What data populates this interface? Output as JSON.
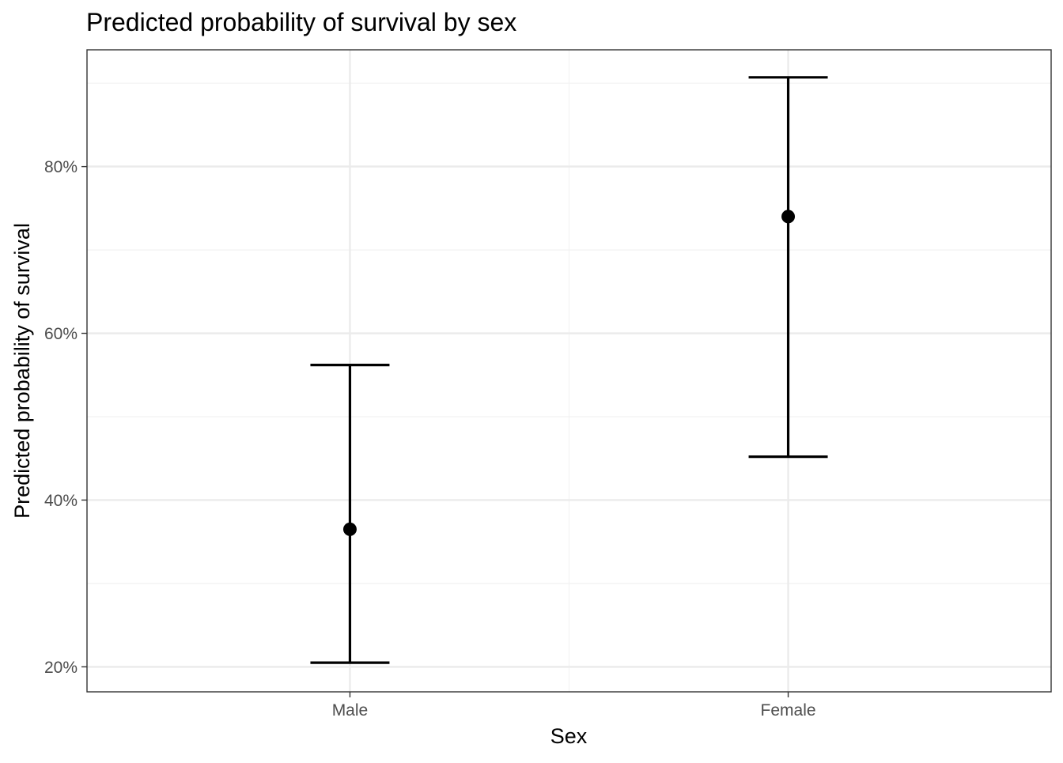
{
  "chart_data": {
    "type": "scatter",
    "subtype": "point-with-errorbars",
    "title": "Predicted probability of survival by sex",
    "xlabel": "Sex",
    "ylabel": "Predicted probability of survival",
    "categories": [
      "Male",
      "Female"
    ],
    "series": [
      {
        "values": [
          0.365,
          0.74
        ],
        "lower": [
          0.205,
          0.452
        ],
        "upper": [
          0.562,
          0.907
        ]
      }
    ],
    "ylim": [
      0.17,
      0.94
    ],
    "yticks": [
      0.2,
      0.4,
      0.6,
      0.8
    ],
    "ytick_labels": [
      "20%",
      "40%",
      "60%",
      "80%"
    ],
    "y_minor_ticks": [
      0.3,
      0.5,
      0.7,
      0.9
    ],
    "grid": true,
    "legend": "none",
    "colors": {
      "point": "#000000",
      "errorbar": "#000000",
      "grid_major": "#ebebeb",
      "grid_minor": "#f2f2f2",
      "panel_border": "#333333",
      "tick_label": "#4d4d4d"
    }
  }
}
